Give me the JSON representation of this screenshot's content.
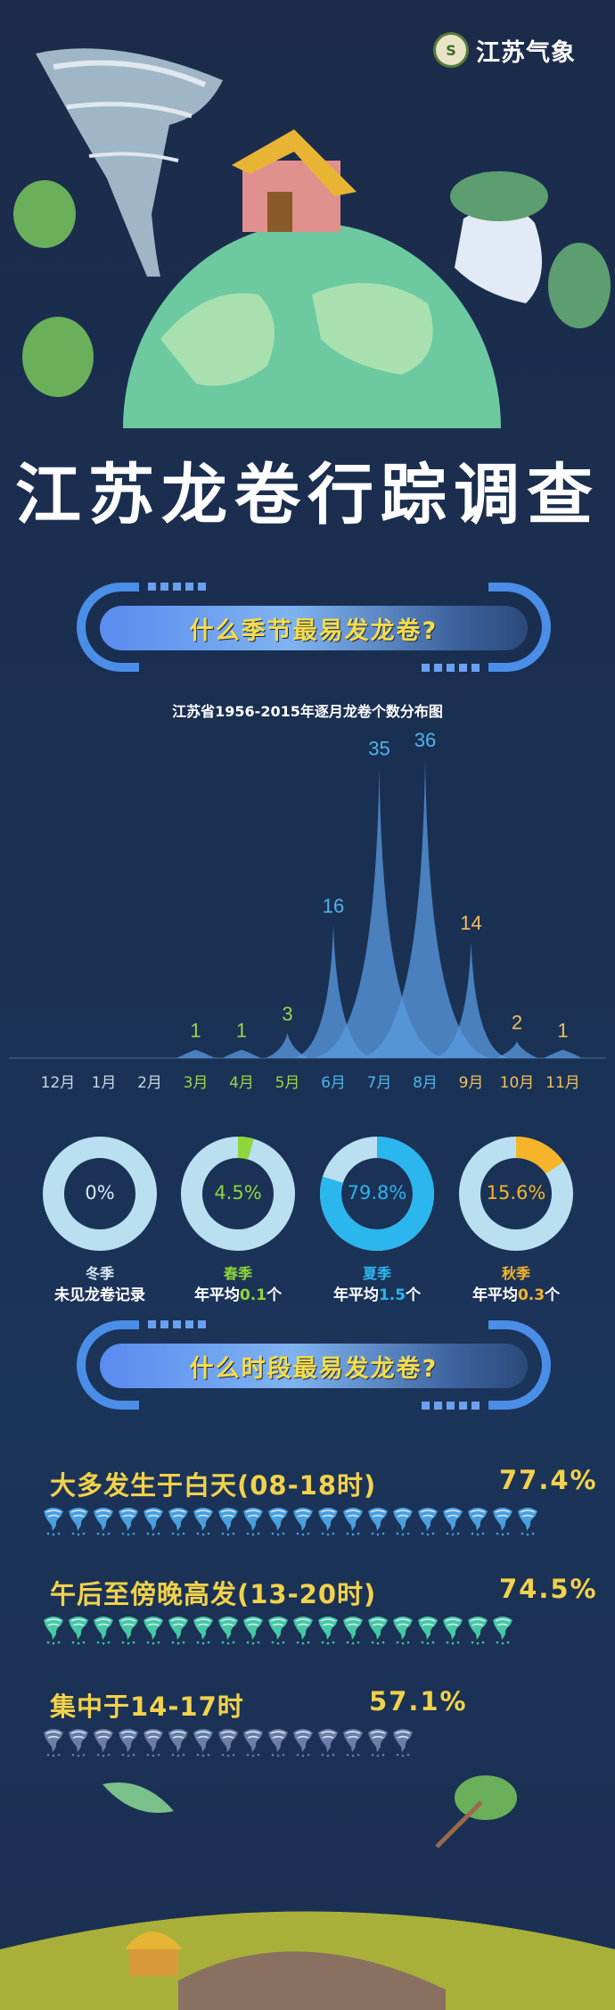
{
  "logo": {
    "text": "江苏气象"
  },
  "title": "江苏龙卷行踪调查",
  "section1": {
    "heading": "什么季节最易发龙卷?"
  },
  "chart_data": {
    "type": "area",
    "title": "江苏省1956-2015年逐月龙卷个数分布图",
    "categories": [
      "12月",
      "1月",
      "2月",
      "3月",
      "4月",
      "5月",
      "6月",
      "7月",
      "8月",
      "9月",
      "10月",
      "11月"
    ],
    "values": [
      0,
      0,
      0,
      1,
      1,
      3,
      16,
      35,
      36,
      14,
      2,
      1
    ],
    "data_labels": [
      "",
      "",
      "",
      "1",
      "1",
      "3",
      "16",
      "35",
      "36",
      "14",
      "2",
      "1"
    ],
    "xlabel": "",
    "ylabel": "",
    "grid": false,
    "colors": {
      "winter": "#c8d8e8",
      "spring": "#9ad64a",
      "summer": "#4fb4ec",
      "autumn": "#f0c060",
      "peak": "#5a9be0"
    }
  },
  "seasons": [
    {
      "name": "冬季",
      "pct_label": "0%",
      "percent": 0,
      "note": "未见龙卷记录",
      "note_prefix": "",
      "note_value": "",
      "note_suffix": "",
      "color": "#c8d8e8"
    },
    {
      "name": "春季",
      "pct_label": "4.5%",
      "percent": 4.5,
      "note": "",
      "note_prefix": "年平均",
      "note_value": "0.1",
      "note_suffix": "个",
      "color": "#8fd63a"
    },
    {
      "name": "夏季",
      "pct_label": "79.8%",
      "percent": 79.8,
      "note": "",
      "note_prefix": "年平均",
      "note_value": "1.5",
      "note_suffix": "个",
      "color": "#2bb6ee"
    },
    {
      "name": "秋季",
      "pct_label": "15.6%",
      "percent": 15.6,
      "note": "",
      "note_prefix": "年平均",
      "note_value": "0.3",
      "note_suffix": "个",
      "color": "#f5b42a"
    }
  ],
  "section2": {
    "heading": "什么时段最易发龙卷?"
  },
  "time_rows": [
    {
      "label": "大多发生于白天(08-18时)",
      "pct": "77.4%",
      "icon_count": 20,
      "icon_color": "#4a9fe0"
    },
    {
      "label": "午后至傍晚高发(13-20时)",
      "pct": "74.5%",
      "icon_count": 19,
      "icon_color": "#45c9a5"
    },
    {
      "label": "集中于14-17时",
      "pct": "57.1%",
      "icon_count": 15,
      "icon_color": "#6a7fa8"
    }
  ]
}
